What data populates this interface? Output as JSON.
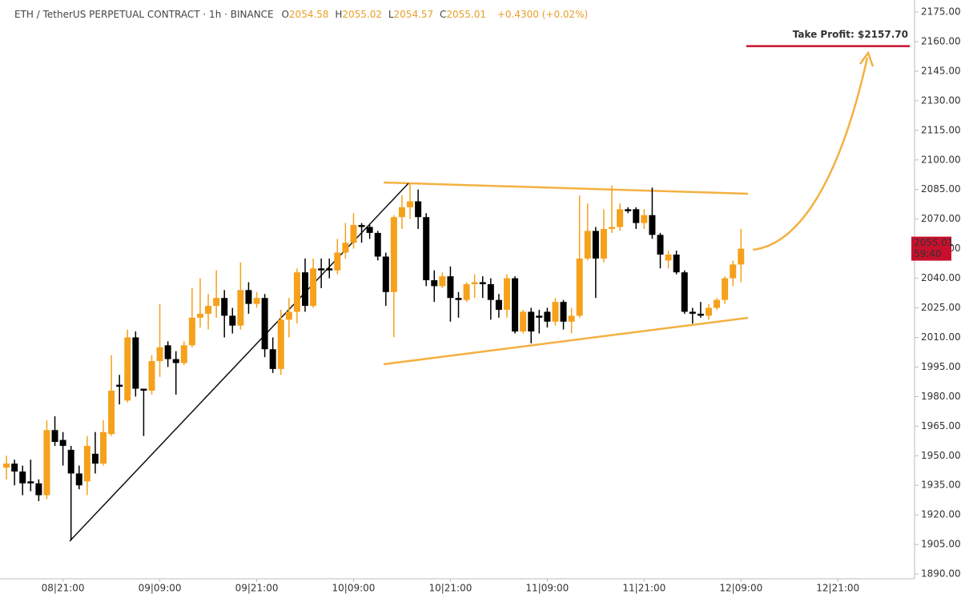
{
  "chart_data": {
    "type": "candlestick",
    "legend": {
      "symbol": "ETH / TetherUS PERPETUAL CONTRACT · 1h · BINANCE",
      "o_label": "O",
      "open": 2054.58,
      "h_label": "H",
      "high": 2055.02,
      "l_label": "L",
      "low": 2054.57,
      "c_label": "C",
      "close": 2055.01,
      "change": "+0.4300 (+0.02%)"
    },
    "open": [
      1944,
      1946,
      1942,
      1937,
      1936,
      1930,
      1963,
      1958,
      1953,
      1941,
      1937,
      1951,
      1946,
      1961,
      1986,
      1978,
      2010,
      1984,
      1983,
      1998,
      2006,
      1999,
      1997,
      2006,
      2020,
      2022,
      2026,
      2030,
      2021,
      2016,
      2034,
      2027,
      2030,
      2004,
      1994,
      2019,
      2023,
      2043,
      2026,
      2045,
      2045,
      2044,
      2053,
      2058,
      2067,
      2066,
      2063,
      2051,
      2033,
      2071,
      2076,
      2079,
      2071,
      2039,
      2036,
      2041,
      2030,
      2029,
      2037,
      2038,
      2037,
      2029,
      2024,
      2040,
      2013,
      2023,
      2021,
      2023,
      2018,
      2028,
      2018,
      2021,
      2050,
      2064,
      2050,
      2065,
      2066,
      2075,
      2075,
      2068,
      2072,
      2062,
      2049,
      2052,
      2043,
      2023,
      2022,
      2021,
      2025,
      2029,
      2040,
      2047
    ],
    "high": [
      1950,
      1948,
      1945,
      1948,
      1938,
      1968,
      1970,
      1962,
      1955,
      1945,
      1960,
      1962,
      1968,
      2001,
      1991,
      2014,
      2013,
      1984,
      2001,
      2027,
      2008,
      2003,
      2008,
      2035,
      2040,
      2032,
      2044,
      2034,
      2025,
      2048,
      2038,
      2033,
      2032,
      2010,
      2024,
      2030,
      2045,
      2050,
      2050,
      2050,
      2050,
      2060,
      2068,
      2073,
      2068,
      2067,
      2064,
      2053,
      2072,
      2082,
      2088,
      2085,
      2073,
      2044,
      2043,
      2046,
      2033,
      2038,
      2042,
      2041,
      2040,
      2032,
      2042,
      2041,
      2024,
      2025,
      2024,
      2025,
      2030,
      2029,
      2025,
      2082,
      2078,
      2066,
      2075,
      2087,
      2078,
      2076,
      2076,
      2075,
      2086,
      2063,
      2054,
      2054,
      2044,
      2025,
      2028,
      2027,
      2030,
      2041,
      2049,
      2065
    ],
    "low": [
      1938,
      1935,
      1930,
      1932,
      1927,
      1928,
      1955,
      1945,
      1907,
      1933,
      1930,
      1941,
      1945,
      1960,
      1976,
      1977,
      1980,
      1960,
      1981,
      1990,
      1995,
      1981,
      1996,
      2005,
      2015,
      2014,
      2020,
      2010,
      2012,
      2014,
      2022,
      2025,
      2000,
      1992,
      1991,
      2010,
      2017,
      2023,
      2025,
      2035,
      2040,
      2042,
      2050,
      2055,
      2058,
      2060,
      2049,
      2026,
      2010,
      2065,
      2070,
      2065,
      2036,
      2028,
      2035,
      2018,
      2020,
      2028,
      2030,
      2030,
      2019,
      2020,
      2020,
      2012,
      2012,
      2007,
      2012,
      2015,
      2016,
      2014,
      2012,
      2020,
      2049,
      2030,
      2048,
      2063,
      2064,
      2073,
      2065,
      2065,
      2060,
      2045,
      2045,
      2042,
      2022,
      2017,
      2020,
      2019,
      2024,
      2027,
      2036,
      2038
    ],
    "close": [
      1946,
      1942,
      1936,
      1936,
      1930,
      1963,
      1957,
      1955,
      1941,
      1935,
      1955,
      1946,
      1962,
      1983,
      1985,
      2010,
      1984,
      1983,
      1998,
      2005,
      1999,
      1997,
      2006,
      2020,
      2022,
      2026,
      2030,
      2021,
      2016,
      2034,
      2027,
      2030,
      2004,
      1994,
      2019,
      2023,
      2043,
      2026,
      2045,
      2044,
      2044,
      2053,
      2058,
      2067,
      2066,
      2063,
      2051,
      2033,
      2071,
      2076,
      2079,
      2071,
      2039,
      2036,
      2041,
      2030,
      2029,
      2037,
      2038,
      2037,
      2029,
      2024,
      2040,
      2013,
      2023,
      2013,
      2020,
      2018,
      2028,
      2018,
      2021,
      2050,
      2064,
      2050,
      2065,
      2066,
      2075,
      2074,
      2068,
      2072,
      2062,
      2052,
      2052,
      2043,
      2023,
      2022,
      2021,
      2025,
      2029,
      2040,
      2047,
      2055
    ],
    "up_color": "#f5a11c",
    "down_color": "#000000",
    "xlim": [
      -0.8,
      112.5
    ],
    "xticks": [
      {
        "value": 7,
        "label": "08|21:00"
      },
      {
        "value": 19,
        "label": "09|09:00"
      },
      {
        "value": 31,
        "label": "09|21:00"
      },
      {
        "value": 43,
        "label": "10|09:00"
      },
      {
        "value": 55,
        "label": "10|21:00"
      },
      {
        "value": 67,
        "label": "11|09:00"
      },
      {
        "value": 79,
        "label": "11|21:00"
      },
      {
        "value": 91,
        "label": "12|09:00"
      },
      {
        "value": 103,
        "label": "12|21:00"
      }
    ],
    "ylim": [
      1887.6,
      2181.1
    ],
    "yticks": [
      {
        "value": 1890,
        "label": "1890.00"
      },
      {
        "value": 1905,
        "label": "1905.00"
      },
      {
        "value": 1920,
        "label": "1920.00"
      },
      {
        "value": 1935,
        "label": "1935.00"
      },
      {
        "value": 1950,
        "label": "1950.00"
      },
      {
        "value": 1965,
        "label": "1965.00"
      },
      {
        "value": 1980,
        "label": "1980.00"
      },
      {
        "value": 1995,
        "label": "1995.00"
      },
      {
        "value": 2010,
        "label": "2010.00"
      },
      {
        "value": 2025,
        "label": "2025.00"
      },
      {
        "value": 2040,
        "label": "2040.00"
      },
      {
        "value": 2055,
        "label": "2055.00"
      },
      {
        "value": 2070,
        "label": "2070.00"
      },
      {
        "value": 2085,
        "label": "2085.00"
      },
      {
        "value": 2100,
        "label": "2100.00"
      },
      {
        "value": 2115,
        "label": "2115.00"
      },
      {
        "value": 2130,
        "label": "2130.00"
      },
      {
        "value": 2145,
        "label": "2145.00"
      },
      {
        "value": 2160,
        "label": "2160.00"
      },
      {
        "value": 2175,
        "label": "2175.00"
      }
    ],
    "price_tag": {
      "value": 2055.01,
      "label": "2055.01",
      "countdown": "59:40",
      "color": "#c8102e"
    },
    "take_profit": {
      "value": 2157.7,
      "label": "Take Profit: $2157.70",
      "color": "#c8102e"
    }
  }
}
